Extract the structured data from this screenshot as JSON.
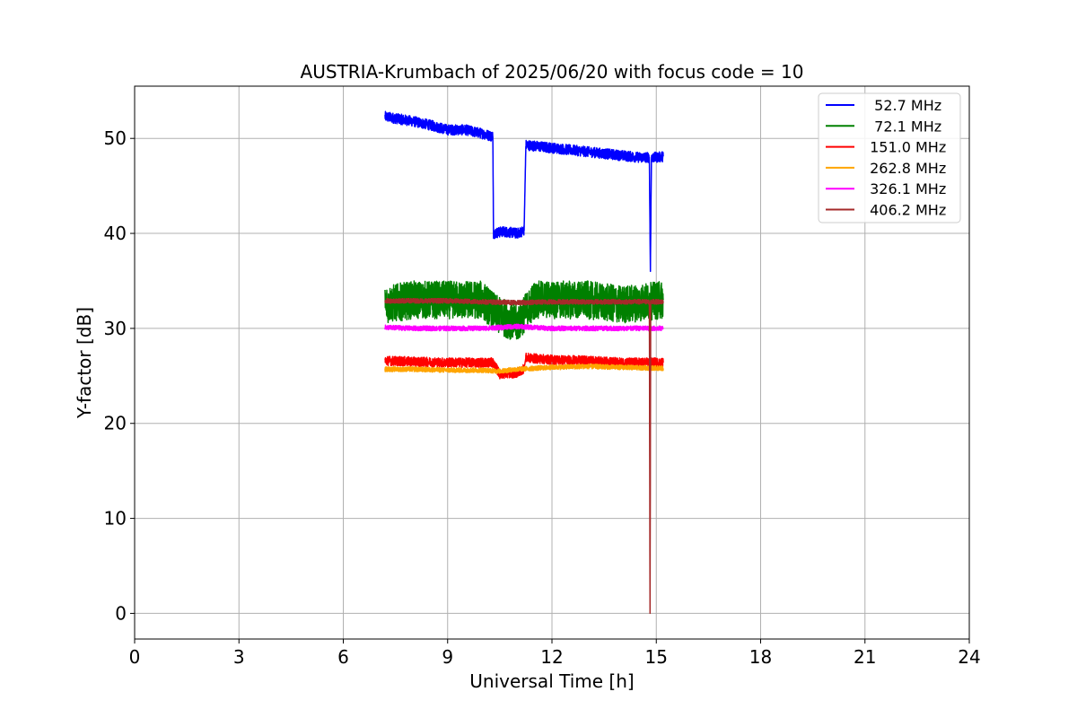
{
  "chart_data": {
    "type": "line",
    "title": "AUSTRIA-Krumbach of 2025/06/20 with focus code = 10",
    "xlabel": "Universal Time [h]",
    "ylabel": "Y-factor [dB]",
    "xlim": [
      0,
      24
    ],
    "ylim": [
      -2.7,
      55.5
    ],
    "xticks": [
      0,
      3,
      6,
      9,
      12,
      15,
      18,
      21,
      24
    ],
    "xtick_labels": [
      "0",
      "3",
      "6",
      "9",
      "12",
      "15",
      "18",
      "21",
      "24"
    ],
    "yticks": [
      0,
      10,
      20,
      30,
      40,
      50
    ],
    "ytick_labels": [
      "0",
      "10",
      "20",
      "30",
      "40",
      "50"
    ],
    "grid": true,
    "legend_position": "top-right",
    "series": [
      {
        "name": "  52.7 MHz",
        "color": "#0000ff",
        "noise": 1.1,
        "points": [
          [
            7.2,
            52.3
          ],
          [
            7.5,
            52.1
          ],
          [
            8.0,
            51.8
          ],
          [
            8.5,
            51.4
          ],
          [
            9.0,
            50.9
          ],
          [
            9.5,
            50.9
          ],
          [
            10.0,
            50.5
          ],
          [
            10.3,
            50.2
          ],
          [
            10.32,
            40.0
          ],
          [
            10.6,
            40.2
          ],
          [
            11.0,
            40.0
          ],
          [
            11.2,
            40.3
          ],
          [
            11.25,
            49.3
          ],
          [
            11.5,
            49.2
          ],
          [
            12.0,
            49.0
          ],
          [
            12.5,
            48.8
          ],
          [
            13.0,
            48.6
          ],
          [
            13.5,
            48.4
          ],
          [
            14.0,
            48.2
          ],
          [
            14.5,
            48.0
          ],
          [
            14.8,
            48.0
          ],
          [
            14.83,
            36.0
          ],
          [
            14.86,
            48.0
          ],
          [
            15.0,
            48.0
          ],
          [
            15.2,
            48.1
          ]
        ]
      },
      {
        "name": "  72.1 MHz",
        "color": "#008000",
        "noise": 4.0,
        "points": [
          [
            7.2,
            32.5
          ],
          [
            8.0,
            33.0
          ],
          [
            9.0,
            33.0
          ],
          [
            10.0,
            33.0
          ],
          [
            10.4,
            31.5
          ],
          [
            11.0,
            30.5
          ],
          [
            11.2,
            31.5
          ],
          [
            11.5,
            33.0
          ],
          [
            12.0,
            33.0
          ],
          [
            13.0,
            33.0
          ],
          [
            14.0,
            32.5
          ],
          [
            15.2,
            33.0
          ]
        ]
      },
      {
        "name": " 151.0 MHz",
        "color": "#ff0000",
        "noise": 1.0,
        "points": [
          [
            7.2,
            26.6
          ],
          [
            8.0,
            26.5
          ],
          [
            9.0,
            26.4
          ],
          [
            10.3,
            26.4
          ],
          [
            10.5,
            25.2
          ],
          [
            11.0,
            25.3
          ],
          [
            11.2,
            25.8
          ],
          [
            11.25,
            26.9
          ],
          [
            12.0,
            26.7
          ],
          [
            13.0,
            26.6
          ],
          [
            14.0,
            26.4
          ],
          [
            15.2,
            26.4
          ]
        ]
      },
      {
        "name": " 262.8 MHz",
        "color": "#ffa500",
        "noise": 0.5,
        "points": [
          [
            7.2,
            25.7
          ],
          [
            8.0,
            25.7
          ],
          [
            9.0,
            25.6
          ],
          [
            10.0,
            25.6
          ],
          [
            10.5,
            25.5
          ],
          [
            11.0,
            25.7
          ],
          [
            12.0,
            25.9
          ],
          [
            13.0,
            26.0
          ],
          [
            14.0,
            25.9
          ],
          [
            15.2,
            25.8
          ]
        ]
      },
      {
        "name": " 326.1 MHz",
        "color": "#ff00ff",
        "noise": 0.5,
        "points": [
          [
            7.2,
            30.1
          ],
          [
            8.0,
            30.0
          ],
          [
            9.0,
            30.0
          ],
          [
            10.0,
            30.0
          ],
          [
            11.0,
            30.2
          ],
          [
            12.0,
            30.0
          ],
          [
            13.0,
            30.0
          ],
          [
            14.0,
            30.0
          ],
          [
            15.2,
            30.0
          ]
        ]
      },
      {
        "name": " 406.2 MHz",
        "color": "#a52a2a",
        "noise": 0.5,
        "points": [
          [
            7.2,
            32.9
          ],
          [
            8.0,
            32.9
          ],
          [
            9.0,
            32.9
          ],
          [
            10.0,
            32.8
          ],
          [
            11.0,
            32.7
          ],
          [
            12.0,
            32.8
          ],
          [
            13.0,
            32.8
          ],
          [
            14.0,
            32.8
          ],
          [
            14.8,
            32.8
          ],
          [
            14.82,
            0.0
          ],
          [
            14.84,
            32.8
          ],
          [
            15.2,
            32.8
          ]
        ]
      }
    ]
  }
}
